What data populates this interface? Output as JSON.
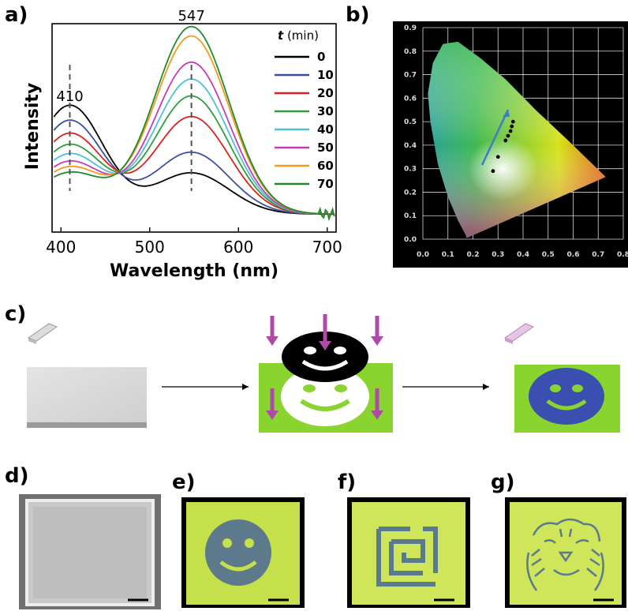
{
  "panels": {
    "a": "a)",
    "b": "b)",
    "c": "c)",
    "d": "d)",
    "e": "e)",
    "f": "f)",
    "g": "g)"
  },
  "chart_data": [
    {
      "type": "line",
      "xlabel": "Wavelength (nm)",
      "ylabel": "Intensity",
      "xlim": [
        390,
        710
      ],
      "ylim": [
        0,
        1.0
      ],
      "xticks": [
        400,
        500,
        600,
        700
      ],
      "peak_labels": [
        {
          "x": 410,
          "text": "410"
        },
        {
          "x": 547,
          "text": "547"
        }
      ],
      "legend_title": "t",
      "legend_unit": "(min)",
      "legend_position": "top-right",
      "series": [
        {
          "name": "0",
          "color": "#000000",
          "peak410": 0.58,
          "peak547": 0.22
        },
        {
          "name": "10",
          "color": "#3a50a8",
          "peak410": 0.5,
          "peak547": 0.33
        },
        {
          "name": "20",
          "color": "#e02020",
          "peak410": 0.43,
          "peak547": 0.52
        },
        {
          "name": "30",
          "color": "#2e9e3a",
          "peak410": 0.37,
          "peak547": 0.63
        },
        {
          "name": "40",
          "color": "#4fc0d8",
          "peak410": 0.32,
          "peak547": 0.72
        },
        {
          "name": "50",
          "color": "#c43db8",
          "peak410": 0.28,
          "peak547": 0.81
        },
        {
          "name": "60",
          "color": "#f59a1a",
          "peak410": 0.25,
          "peak547": 0.95
        },
        {
          "name": "70",
          "color": "#1f8a2e",
          "peak410": 0.22,
          "peak547": 1.0
        }
      ]
    },
    {
      "type": "scatter",
      "xlim": [
        0,
        0.8
      ],
      "ylim": [
        0,
        0.9
      ],
      "xticks": [
        "0.0",
        "0.1",
        "0.2",
        "0.3",
        "0.4",
        "0.5",
        "0.6",
        "0.7",
        "0.8"
      ],
      "yticks": [
        "0.0",
        "0.1",
        "0.2",
        "0.3",
        "0.4",
        "0.5",
        "0.6",
        "0.7",
        "0.8",
        "0.9"
      ],
      "grid": true,
      "points": [
        {
          "x": 0.28,
          "y": 0.29
        },
        {
          "x": 0.3,
          "y": 0.35
        },
        {
          "x": 0.33,
          "y": 0.42
        },
        {
          "x": 0.34,
          "y": 0.44
        },
        {
          "x": 0.35,
          "y": 0.46
        },
        {
          "x": 0.355,
          "y": 0.48
        },
        {
          "x": 0.36,
          "y": 0.5
        }
      ]
    }
  ]
}
